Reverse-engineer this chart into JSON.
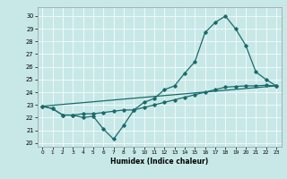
{
  "xlabel": "Humidex (Indice chaleur)",
  "xlim": [
    -0.5,
    23.5
  ],
  "ylim": [
    19.7,
    30.7
  ],
  "yticks": [
    20,
    21,
    22,
    23,
    24,
    25,
    26,
    27,
    28,
    29,
    30
  ],
  "xticks": [
    0,
    1,
    2,
    3,
    4,
    5,
    6,
    7,
    8,
    9,
    10,
    11,
    12,
    13,
    14,
    15,
    16,
    17,
    18,
    19,
    20,
    21,
    22,
    23
  ],
  "bg_color": "#c8e8e8",
  "line_color": "#1a6b6b",
  "line1_x": [
    0,
    1,
    2,
    3,
    4,
    5,
    6,
    7,
    8,
    9,
    10,
    11,
    12,
    13,
    14,
    15,
    16,
    17,
    18,
    19,
    20,
    21,
    22,
    23
  ],
  "line1_y": [
    22.9,
    22.7,
    22.2,
    22.2,
    22.0,
    22.1,
    21.1,
    20.3,
    21.4,
    22.6,
    23.2,
    23.5,
    24.2,
    24.5,
    25.5,
    26.4,
    28.7,
    29.5,
    30.0,
    29.0,
    27.7,
    25.6,
    25.0,
    24.5
  ],
  "line2_x": [
    0,
    1,
    2,
    3,
    4,
    5,
    6,
    7,
    8,
    9,
    10,
    11,
    12,
    13,
    14,
    15,
    16,
    17,
    18,
    19,
    20,
    21,
    22,
    23
  ],
  "line2_y": [
    22.9,
    22.7,
    22.2,
    22.2,
    22.3,
    22.3,
    22.4,
    22.5,
    22.6,
    22.6,
    22.8,
    23.0,
    23.2,
    23.4,
    23.6,
    23.8,
    24.0,
    24.2,
    24.4,
    24.45,
    24.5,
    24.5,
    24.55,
    24.5
  ],
  "line3_x": [
    0,
    23
  ],
  "line3_y": [
    22.9,
    24.5
  ]
}
